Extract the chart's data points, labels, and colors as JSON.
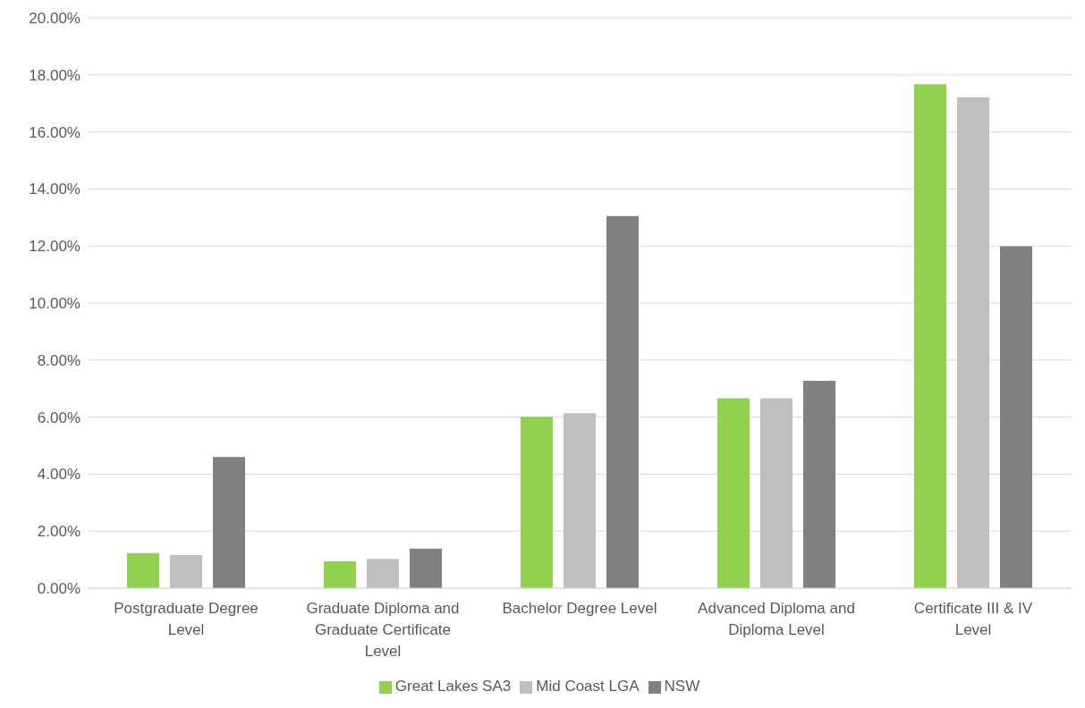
{
  "chart_data": {
    "type": "bar",
    "categories": [
      "Postgraduate Degree Level",
      "Graduate Diploma and Graduate Certificate Level",
      "Bachelor Degree Level",
      "Advanced Diploma and Diploma Level",
      "Certificate III & IV Level"
    ],
    "series": [
      {
        "name": "Great Lakes SA3",
        "color": "#92d050",
        "values": [
          1.23,
          0.94,
          6.01,
          6.66,
          17.67
        ]
      },
      {
        "name": "Mid Coast LGA",
        "color": "#bfbfbf",
        "values": [
          1.16,
          1.03,
          6.14,
          6.66,
          17.22
        ]
      },
      {
        "name": "NSW",
        "color": "#808080",
        "values": [
          4.6,
          1.39,
          13.05,
          7.27,
          11.99
        ]
      }
    ],
    "ylim": [
      0,
      20
    ],
    "yticks": [
      {
        "value": 0,
        "label": "0.00%"
      },
      {
        "value": 2,
        "label": "2.00%"
      },
      {
        "value": 4,
        "label": "4.00%"
      },
      {
        "value": 6,
        "label": "6.00%"
      },
      {
        "value": 8,
        "label": "8.00%"
      },
      {
        "value": 10,
        "label": "10.00%"
      },
      {
        "value": 12,
        "label": "12.00%"
      },
      {
        "value": 14,
        "label": "14.00%"
      },
      {
        "value": 16,
        "label": "16.00%"
      },
      {
        "value": 18,
        "label": "18.00%"
      },
      {
        "value": 20,
        "label": "20.00%"
      }
    ],
    "grid": "y",
    "legend": "bottom"
  }
}
